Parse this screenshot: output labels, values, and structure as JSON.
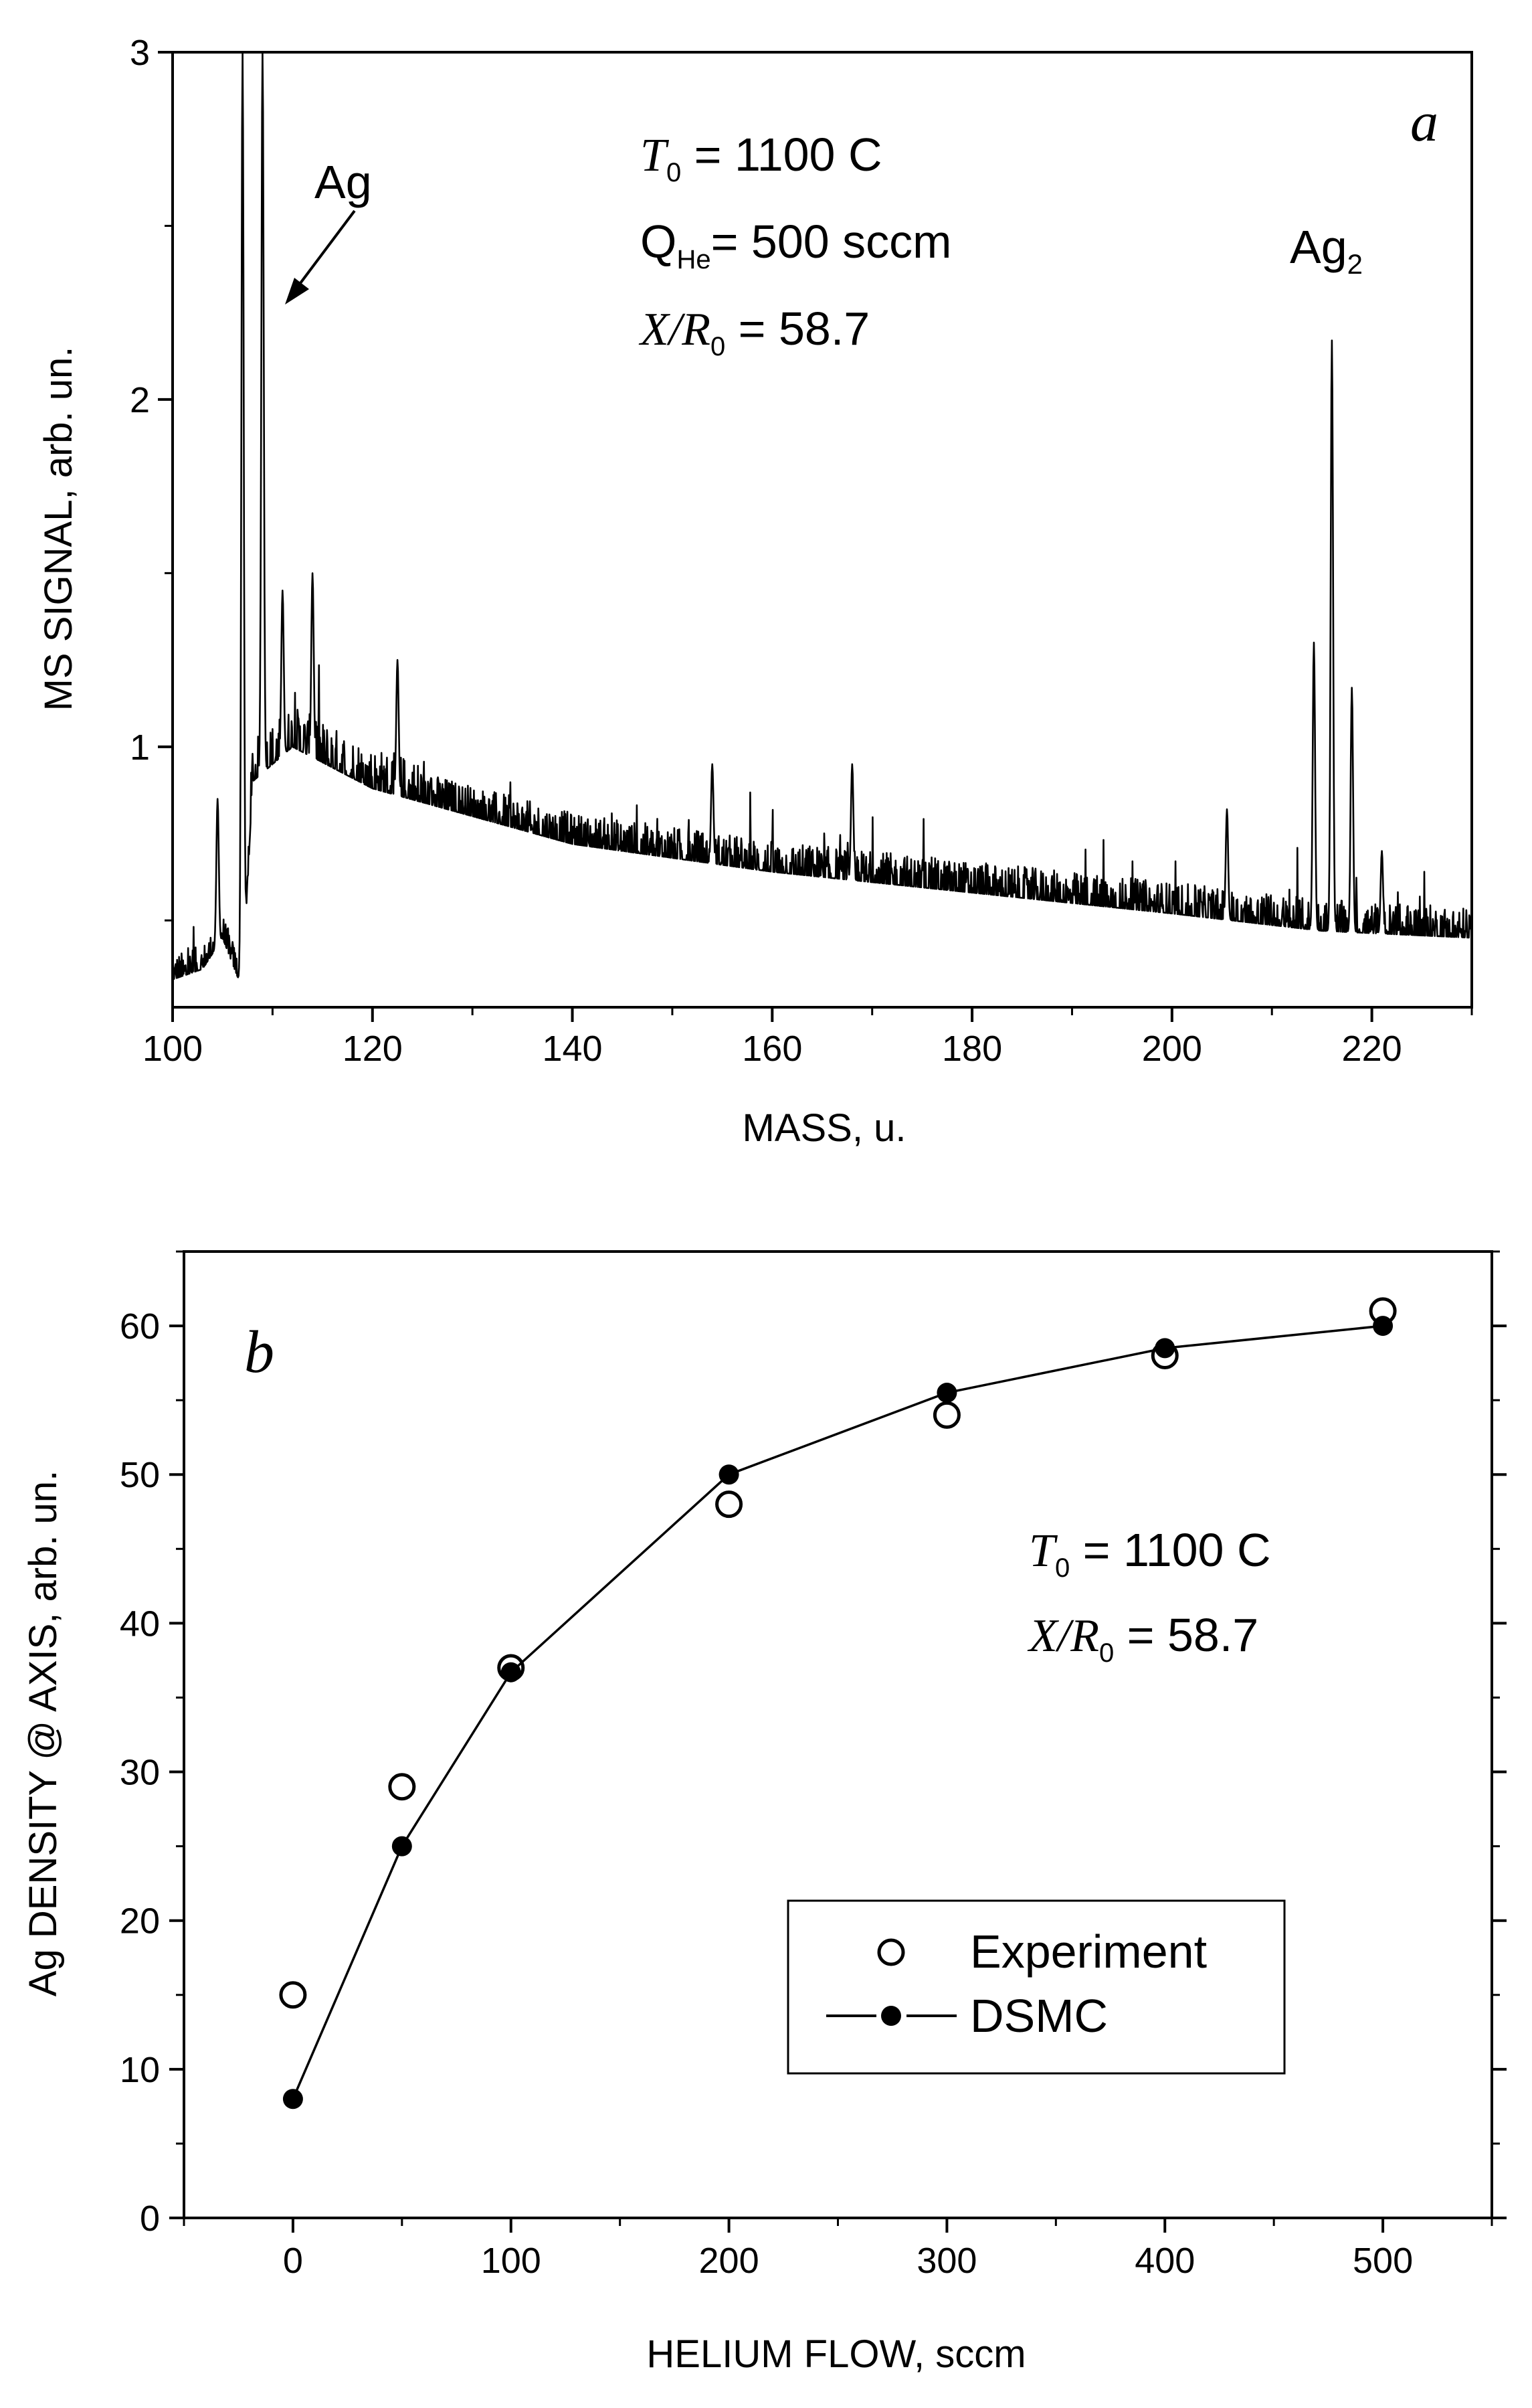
{
  "chart_data": [
    {
      "panel": "a",
      "type": "line",
      "title": "",
      "xlabel": "MASS, u.",
      "ylabel": "MS SIGNAL, arb. un.",
      "xlim": [
        100,
        230
      ],
      "ylim": [
        0.25,
        3.0
      ],
      "xticks": [
        100,
        120,
        140,
        160,
        180,
        200,
        220
      ],
      "yticks": [
        1,
        2,
        3
      ],
      "grid": false,
      "annotations": {
        "params": [
          {
            "sym": "T",
            "sub": "0",
            "rest": " = 1100 C"
          },
          {
            "sym": "Q",
            "sub": "He",
            "rest": "= 500 sccm"
          },
          {
            "sym": "X/R",
            "sub": "0",
            "rest": " = 58.7"
          }
        ],
        "peak_labels": [
          {
            "text": "Ag",
            "sub": ""
          },
          {
            "text": "Ag",
            "sub": "2"
          }
        ],
        "panel_letter": "a"
      },
      "series": [
        {
          "name": "MS signal",
          "baseline_points": [
            [
              100,
              0.33
            ],
            [
              103,
              0.36
            ],
            [
              105,
              0.45
            ],
            [
              107,
              0.3
            ],
            [
              108,
              0.9
            ],
            [
              112,
              1.0
            ],
            [
              120,
              0.88
            ],
            [
              140,
              0.72
            ],
            [
              160,
              0.64
            ],
            [
              180,
              0.58
            ],
            [
              200,
              0.52
            ],
            [
              215,
              0.47
            ],
            [
              230,
              0.45
            ]
          ],
          "peaks": [
            {
              "x": 104.5,
              "y": 0.85
            },
            {
              "x": 107.0,
              "y": 3.0
            },
            {
              "x": 109.0,
              "y": 3.0
            },
            {
              "x": 111.0,
              "y": 1.45
            },
            {
              "x": 114.0,
              "y": 1.5
            },
            {
              "x": 122.5,
              "y": 1.25
            },
            {
              "x": 154.0,
              "y": 0.95
            },
            {
              "x": 168.0,
              "y": 0.95
            },
            {
              "x": 205.5,
              "y": 0.82
            },
            {
              "x": 214.2,
              "y": 1.3
            },
            {
              "x": 216.0,
              "y": 2.17
            },
            {
              "x": 218.0,
              "y": 1.17
            },
            {
              "x": 221.0,
              "y": 0.7
            }
          ]
        }
      ]
    },
    {
      "panel": "b",
      "type": "scatter",
      "title": "",
      "xlabel": "HELIUM FLOW, sccm",
      "ylabel": "Ag DENSITY @ AXIS, arb. un.",
      "xlim": [
        -50,
        550
      ],
      "ylim": [
        0,
        65
      ],
      "xticks": [
        0,
        100,
        200,
        300,
        400,
        500
      ],
      "yticks": [
        0,
        10,
        20,
        30,
        40,
        50,
        60
      ],
      "grid": false,
      "legend_position": "bottom-right",
      "annotations": {
        "params": [
          {
            "sym": "T",
            "sub": "0",
            "rest": " = 1100 C"
          },
          {
            "sym": "X/R",
            "sub": "0",
            "rest": " = 58.7"
          }
        ],
        "panel_letter": "b"
      },
      "series": [
        {
          "name": "Experiment",
          "marker": "open-circle",
          "x": [
            0,
            50,
            100,
            200,
            300,
            400,
            500
          ],
          "y": [
            15,
            29,
            37,
            48,
            54,
            58,
            61
          ]
        },
        {
          "name": "DSMC",
          "marker": "filled-circle-line",
          "x": [
            0,
            50,
            100,
            200,
            300,
            400,
            500
          ],
          "y": [
            8,
            25,
            36.7,
            50,
            55.5,
            58.5,
            60
          ]
        }
      ]
    }
  ]
}
